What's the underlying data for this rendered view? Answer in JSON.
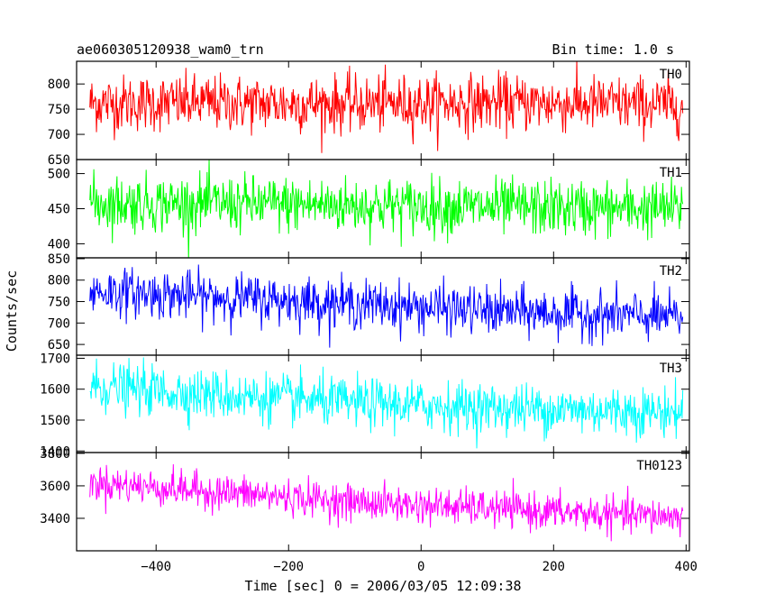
{
  "chart_data": {
    "type": "line",
    "title": "ae060305120938_wam0_trn",
    "subtitle": "Bin time: 1.0 s",
    "xlabel": "Time [sec] 0 = 2006/03/05 12:09:38",
    "ylabel": "Counts/sec",
    "xlim": [
      -520,
      405
    ],
    "xticks": [
      -400,
      -200,
      0,
      200,
      400
    ],
    "data_x_range": [
      -500,
      395
    ],
    "bin_time": 1.0,
    "grid": false,
    "legend": "none",
    "panels": [
      {
        "name": "TH0",
        "color": "#ff0000",
        "ylim": [
          650,
          845
        ],
        "yticks": [
          650,
          700,
          750,
          800
        ],
        "trend": [
          [
            -500,
            762
          ],
          [
            -300,
            762
          ],
          [
            -100,
            760
          ],
          [
            100,
            763
          ],
          [
            300,
            760
          ],
          [
            395,
            758
          ]
        ],
        "noise_sd": 28
      },
      {
        "name": "TH1",
        "color": "#00ff00",
        "ylim": [
          380,
          520
        ],
        "yticks": [
          400,
          450,
          500
        ],
        "trend": [
          [
            -500,
            458
          ],
          [
            -300,
            457
          ],
          [
            -100,
            455
          ],
          [
            100,
            452
          ],
          [
            300,
            450
          ],
          [
            395,
            450
          ]
        ],
        "noise_sd": 20
      },
      {
        "name": "TH2",
        "color": "#0000ff",
        "ylim": [
          625,
          852
        ],
        "yticks": [
          650,
          700,
          750,
          800,
          850
        ],
        "trend": [
          [
            -500,
            775
          ],
          [
            -300,
            760
          ],
          [
            -100,
            745
          ],
          [
            100,
            728
          ],
          [
            300,
            718
          ],
          [
            395,
            712
          ]
        ],
        "noise_sd": 28
      },
      {
        "name": "TH3",
        "color": "#00ffff",
        "ylim": [
          1395,
          1710
        ],
        "yticks": [
          1400,
          1500,
          1600,
          1700
        ],
        "trend": [
          [
            -500,
            1610
          ],
          [
            -300,
            1580
          ],
          [
            -100,
            1555
          ],
          [
            100,
            1540
          ],
          [
            300,
            1530
          ],
          [
            395,
            1525
          ]
        ],
        "noise_sd": 40
      },
      {
        "name": "TH0123",
        "color": "#ff00ff",
        "ylim": [
          3200,
          3805
        ],
        "yticks": [
          3400,
          3600,
          3800
        ],
        "trend": [
          [
            -500,
            3620
          ],
          [
            -300,
            3560
          ],
          [
            -100,
            3500
          ],
          [
            100,
            3460
          ],
          [
            300,
            3420
          ],
          [
            395,
            3410
          ]
        ],
        "noise_sd": 55
      }
    ]
  }
}
